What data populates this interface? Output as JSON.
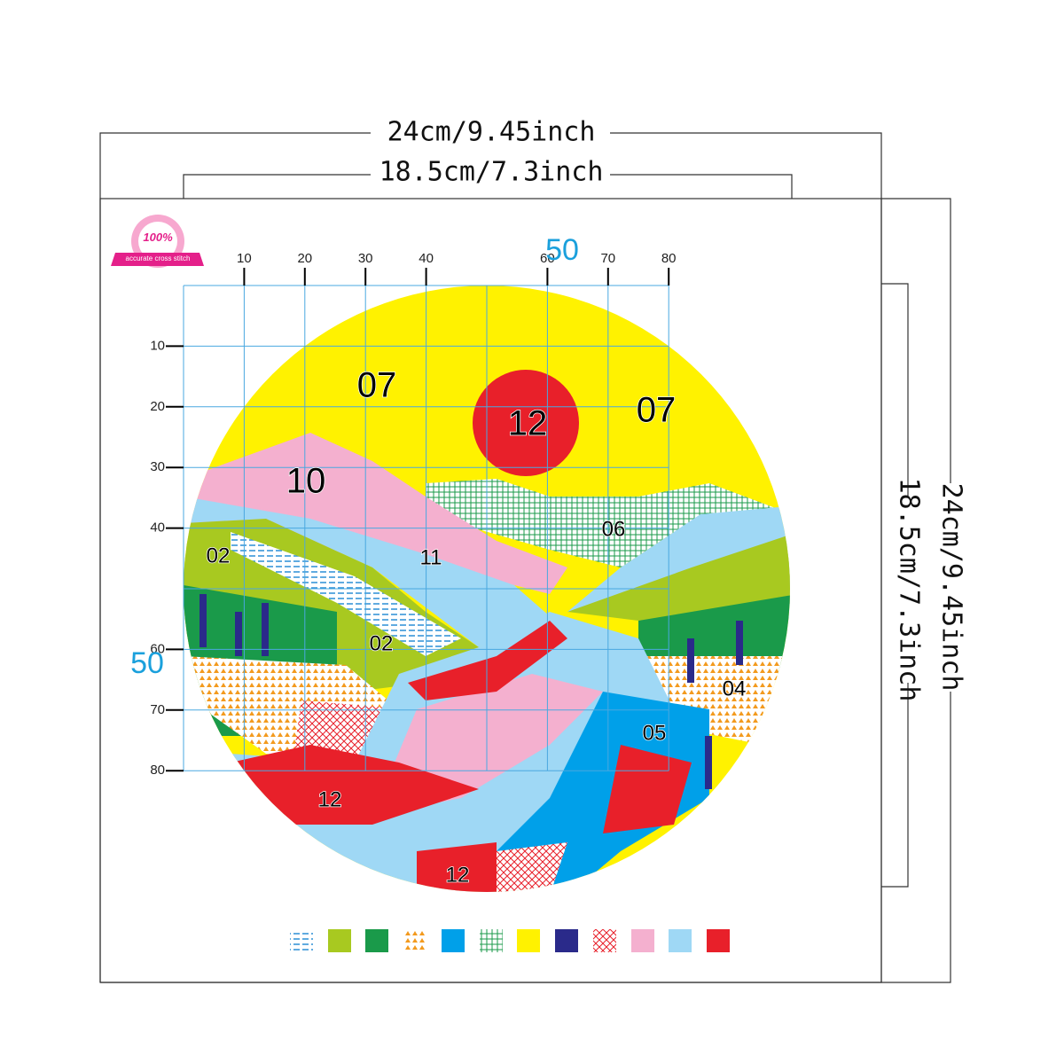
{
  "badge": {
    "percent": "100%",
    "text": "accurate cross stitch"
  },
  "dimensions": {
    "outer_width": "24cm/9.45inch",
    "inner_width": "18.5cm/7.3inch",
    "outer_height": "24cm/9.45inch",
    "inner_height": "18.5cm/7.3inch"
  },
  "grid": {
    "x_labels": [
      "10",
      "20",
      "30",
      "40",
      "60",
      "70",
      "80"
    ],
    "x_center": "50",
    "y_labels": [
      "10",
      "20",
      "30",
      "40",
      "60",
      "70",
      "80"
    ],
    "y_center": "50"
  },
  "regions": [
    "07",
    "12",
    "07",
    "10",
    "06",
    "02",
    "11",
    "02",
    "04",
    "05",
    "12",
    "12"
  ]
}
